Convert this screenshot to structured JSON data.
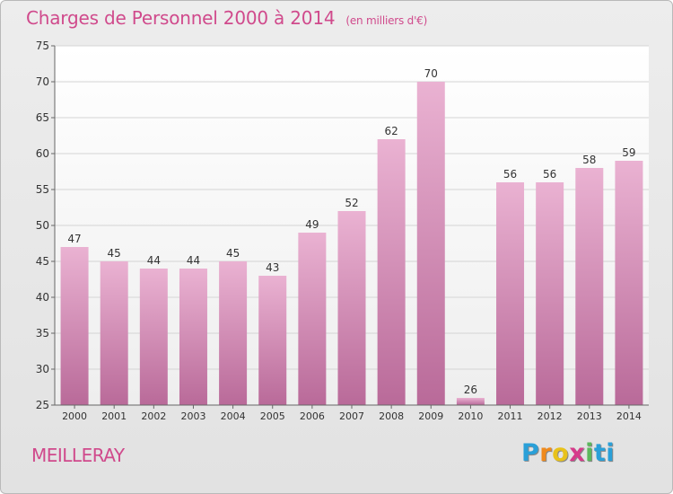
{
  "header": {
    "title": "Charges de Personnel 2000 à 2014",
    "subtitle": "(en milliers d'€)"
  },
  "footer": {
    "commune": "MEILLERAY",
    "logo_letters": [
      "P",
      "r",
      "o",
      "x",
      "i",
      "t",
      "i"
    ]
  },
  "colors": {
    "accent": "#d04a8c",
    "bar_top": "#eab2d2",
    "bar_bottom": "#b96a99"
  },
  "chart_data": {
    "type": "bar",
    "categories": [
      "2000",
      "2001",
      "2002",
      "2003",
      "2004",
      "2005",
      "2006",
      "2007",
      "2008",
      "2009",
      "2010",
      "2011",
      "2012",
      "2013",
      "2014"
    ],
    "values": [
      47,
      45,
      44,
      44,
      45,
      43,
      49,
      52,
      62,
      70,
      26,
      56,
      56,
      58,
      59
    ],
    "ylim": [
      25,
      75
    ],
    "yticks": [
      25,
      30,
      35,
      40,
      45,
      50,
      55,
      60,
      65,
      70,
      75
    ],
    "grid": true
  }
}
